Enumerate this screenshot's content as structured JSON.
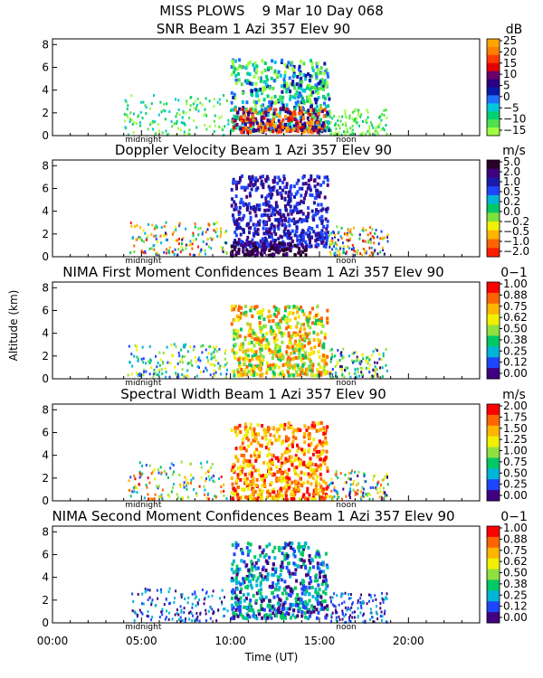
{
  "chart_data": {
    "type": "heatmap",
    "title": "MISS PLOWS    9 Mar 10 Day 068",
    "xlabel": "Time (UT)",
    "ylabel": "Altitude (km)",
    "xlim": [
      0,
      24
    ],
    "x_ticks": [
      "00:00",
      "05:00",
      "10:00",
      "15:00",
      "20:00"
    ],
    "x_tick_values": [
      0,
      5,
      10,
      15,
      20
    ],
    "ylim": [
      0,
      8.5
    ],
    "y_ticks": [
      "0",
      "2",
      "4",
      "6",
      "8"
    ],
    "y_tick_values": [
      0,
      2,
      4,
      6,
      8
    ],
    "time_markers": [
      {
        "label": "midnight",
        "x": 5.1
      },
      {
        "label": "noon",
        "x": 16.5
      }
    ],
    "panels": [
      {
        "title": "SNR Beam 1 Azi 357 Elev 90",
        "unit": "dB",
        "colorbar_labels": [
          "25",
          "20",
          "15",
          "10",
          "5",
          "0",
          "−5",
          "−10",
          "−15"
        ],
        "colorbar_colors": [
          "#ffa500",
          "#ff7f00",
          "#ff3c00",
          "#e50000",
          "#6a006a",
          "#2b0080",
          "#0a1aa8",
          "#1e6fff",
          "#00c8d8",
          "#00d070",
          "#4ee04e",
          "#a0ff40"
        ]
      },
      {
        "title": "Doppler Velocity Beam 1 Azi 357 Elev 90",
        "unit": "m/s",
        "colorbar_labels": [
          "5.0",
          "2.0",
          "1.0",
          "0.5",
          "0.2",
          "0.0",
          "−0.2",
          "−0.5",
          "−1.0",
          "−2.0"
        ],
        "colorbar_colors": [
          "#2a0028",
          "#400080",
          "#1a1aaa",
          "#1e46ff",
          "#00b4d8",
          "#00c864",
          "#7ee03c",
          "#f0f000",
          "#ffb400",
          "#ff6400",
          "#ff1e00"
        ]
      },
      {
        "title": "NIMA First Moment Confidences Beam 1 Azi 357 Elev 90",
        "unit": "0−1",
        "colorbar_labels": [
          "1.00",
          "0.88",
          "0.75",
          "0.62",
          "0.50",
          "0.38",
          "0.25",
          "0.12",
          "0.00"
        ],
        "colorbar_colors": [
          "#ff0000",
          "#ff6400",
          "#ffb400",
          "#f0f000",
          "#90e040",
          "#00c864",
          "#00b4d8",
          "#1e46ff",
          "#400080"
        ]
      },
      {
        "title": "Spectral Width Beam 1 Azi 357 Elev 90",
        "unit": "m/s",
        "colorbar_labels": [
          "2.00",
          "1.75",
          "1.50",
          "1.25",
          "1.00",
          "0.75",
          "0.50",
          "0.25",
          "0.00"
        ],
        "colorbar_colors": [
          "#ff0000",
          "#ff6400",
          "#ffb400",
          "#f0f000",
          "#90e040",
          "#00c864",
          "#00b4d8",
          "#1e46ff",
          "#400080"
        ]
      },
      {
        "title": "NIMA Second Moment Confidences Beam 1 Azi 357 Elev 90",
        "unit": "0−1",
        "colorbar_labels": [
          "1.00",
          "0.88",
          "0.75",
          "0.62",
          "0.50",
          "0.38",
          "0.25",
          "0.12",
          "0.00"
        ],
        "colorbar_colors": [
          "#ff0000",
          "#ff6400",
          "#ffb400",
          "#f0f000",
          "#90e040",
          "#00c864",
          "#00b4d8",
          "#1e46ff",
          "#400080"
        ]
      }
    ]
  }
}
